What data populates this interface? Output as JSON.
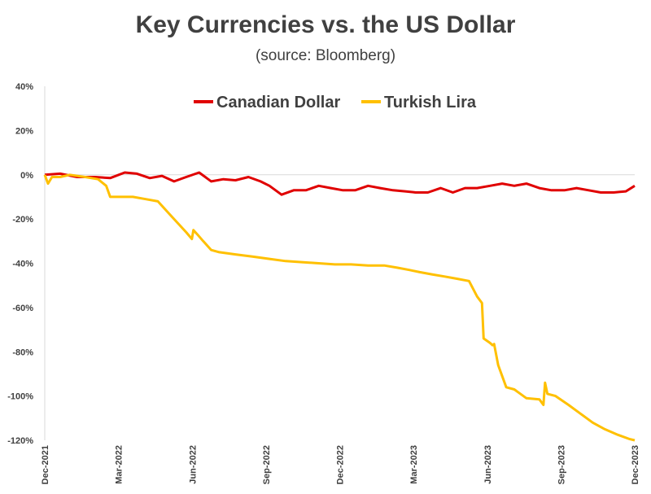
{
  "chart_data": {
    "type": "line",
    "title": "Key Currencies vs. the US Dollar",
    "subtitle": "(source: Bloomberg)",
    "ylim": [
      -120,
      40
    ],
    "y_ticks": [
      "40%",
      "20%",
      "0%",
      "-20%",
      "-40%",
      "-60%",
      "-80%",
      "-100%",
      "-120%"
    ],
    "y_tick_values": [
      40,
      20,
      0,
      -20,
      -40,
      -60,
      -80,
      -100,
      -120
    ],
    "x_ticks": [
      "Dec-2021",
      "Mar-2022",
      "Jun-2022",
      "Sep-2022",
      "Dec-2022",
      "Mar-2023",
      "Jun-2023",
      "Sep-2023",
      "Dec-2023"
    ],
    "grid": false,
    "legend_position": "top-center",
    "series": [
      {
        "name": "Canadian Dollar",
        "color": "#e00000",
        "x": [
          "2021-12-01",
          "2021-12-20",
          "2022-01-10",
          "2022-02-01",
          "2022-02-20",
          "2022-03-10",
          "2022-03-25",
          "2022-04-10",
          "2022-04-25",
          "2022-05-10",
          "2022-05-25",
          "2022-06-10",
          "2022-06-25",
          "2022-07-10",
          "2022-07-25",
          "2022-08-10",
          "2022-08-25",
          "2022-09-05",
          "2022-09-20",
          "2022-10-05",
          "2022-10-20",
          "2022-11-05",
          "2022-11-20",
          "2022-12-05",
          "2022-12-20",
          "2023-01-05",
          "2023-01-20",
          "2023-02-05",
          "2023-02-20",
          "2023-03-05",
          "2023-03-20",
          "2023-04-05",
          "2023-04-20",
          "2023-05-05",
          "2023-05-20",
          "2023-06-05",
          "2023-06-20",
          "2023-07-05",
          "2023-07-20",
          "2023-08-05",
          "2023-08-20",
          "2023-09-05",
          "2023-09-20",
          "2023-10-05",
          "2023-10-20",
          "2023-11-05",
          "2023-11-20",
          "2023-12-01"
        ],
        "values": [
          0,
          0.5,
          -1,
          -1,
          -1.5,
          1,
          0.5,
          -1.5,
          -0.5,
          -3,
          -1,
          1,
          -3,
          -2,
          -2.5,
          -1,
          -3,
          -5,
          -9,
          -7,
          -7,
          -5,
          -6,
          -7,
          -7,
          -5,
          -6,
          -7,
          -7.5,
          -8,
          -8,
          -6,
          -8,
          -6,
          -6,
          -5,
          -4,
          -5,
          -4,
          -6,
          -7,
          -7,
          -6,
          -7,
          -8,
          -8,
          -7.5,
          -5
        ]
      },
      {
        "name": "Turkish Lira",
        "color": "#ffc000",
        "x": [
          "2021-12-01",
          "2021-12-05",
          "2021-12-10",
          "2021-12-20",
          "2022-01-01",
          "2022-01-20",
          "2022-02-05",
          "2022-02-15",
          "2022-02-20",
          "2022-03-05",
          "2022-03-20",
          "2022-04-05",
          "2022-04-20",
          "2022-05-05",
          "2022-05-15",
          "2022-05-25",
          "2022-06-01",
          "2022-06-03",
          "2022-06-08",
          "2022-06-15",
          "2022-06-25",
          "2022-07-05",
          "2022-07-25",
          "2022-08-15",
          "2022-09-05",
          "2022-09-25",
          "2022-10-15",
          "2022-11-05",
          "2022-11-25",
          "2022-12-15",
          "2023-01-05",
          "2023-01-25",
          "2023-02-10",
          "2023-02-25",
          "2023-03-10",
          "2023-03-25",
          "2023-04-10",
          "2023-04-25",
          "2023-05-10",
          "2023-05-20",
          "2023-05-26",
          "2023-05-28",
          "2023-06-05",
          "2023-06-08",
          "2023-06-10",
          "2023-06-15",
          "2023-06-25",
          "2023-07-05",
          "2023-07-20",
          "2023-08-05",
          "2023-08-10",
          "2023-08-12",
          "2023-08-15",
          "2023-08-25",
          "2023-09-10",
          "2023-09-25",
          "2023-10-10",
          "2023-10-25",
          "2023-11-10",
          "2023-11-25",
          "2023-12-01"
        ],
        "values": [
          0,
          -4,
          -1,
          -1,
          0,
          -1,
          -2,
          -5,
          -10,
          -10,
          -10,
          -11,
          -12,
          -18,
          -22,
          -26,
          -29,
          -25,
          -27,
          -30,
          -34,
          -35,
          -36,
          -37,
          -38,
          -39,
          -39.5,
          -40,
          -40.5,
          -40.5,
          -41,
          -41,
          -42,
          -43,
          -44,
          -45,
          -46,
          -47,
          -48,
          -55,
          -58,
          -74,
          -76,
          -77,
          -76.5,
          -86,
          -96,
          -97,
          -101,
          -101.5,
          -104,
          -94,
          -99,
          -100,
          -104,
          -108,
          -112,
          -115,
          -117.5,
          -119.5,
          -120
        ]
      }
    ]
  }
}
